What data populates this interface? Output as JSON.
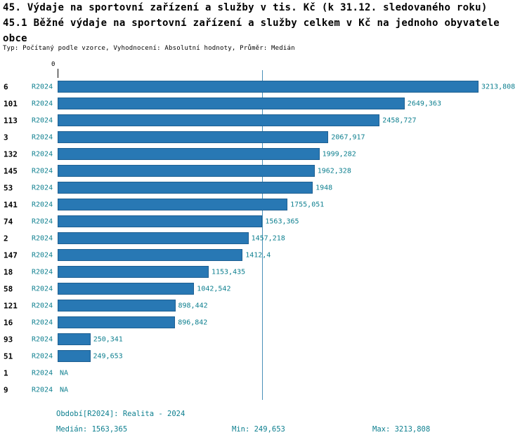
{
  "header": {
    "title_line1": "45. Výdaje na sportovní zařízení a služby v tis. Kč (k 31.12. sledovaného roku)",
    "title_line2": "45.1 Běžné výdaje na sportovní zařízení a služby celkem v Kč na jednoho obyvatele",
    "title_line3": "obce",
    "meta": "Typ: Počítaný podle vzorce, Vyhodnocení: Absolutní hodnoty, Průměr: Medián"
  },
  "chart_data": {
    "type": "bar",
    "orientation": "horizontal",
    "title": "45. Výdaje na sportovní zařízení a služby v tis. Kč (k 31.12. sledovaného roku) — 45.1 Běžné výdaje na sportovní zařízení a služby celkem v Kč na jednoho obyvatele obce",
    "categories": [
      "6",
      "101",
      "113",
      "3",
      "132",
      "145",
      "53",
      "141",
      "74",
      "2",
      "147",
      "18",
      "58",
      "121",
      "16",
      "93",
      "51",
      "1",
      "9"
    ],
    "series": [
      {
        "name": "R2024",
        "values": [
          3213.808,
          2649.363,
          2458.727,
          2067.917,
          1999.282,
          1962.328,
          1948,
          1755.051,
          1563.365,
          1457.218,
          1412.4,
          1153.435,
          1042.542,
          898.442,
          896.842,
          250.341,
          249.653,
          null,
          null
        ]
      }
    ],
    "value_labels": [
      "3213,808",
      "2649,363",
      "2458,727",
      "2067,917",
      "1999,282",
      "1962,328",
      "1948",
      "1755,051",
      "1563,365",
      "1457,218",
      "1412,4",
      "1153,435",
      "1042,542",
      "898,442",
      "896,842",
      "250,341",
      "249,653",
      "NA",
      "NA"
    ],
    "x_axis": {
      "zero_label": "0",
      "max": 3213.808
    },
    "median_value": 1563.365,
    "min_value": 249.653,
    "max_value": 3213.808,
    "legend_position": "none",
    "grid": false
  },
  "footer": {
    "period": "Období[R2024]: Realita - 2024",
    "median": "Medián: 1563,365",
    "min": "Min: 249,653",
    "max": "Max: 3213,808"
  },
  "colors": {
    "bar_fill": "#2878b4",
    "bar_border": "#1e6092",
    "accent_text": "#0d7f8f",
    "median_line": "#4a90b8",
    "title_text": "#000000"
  }
}
